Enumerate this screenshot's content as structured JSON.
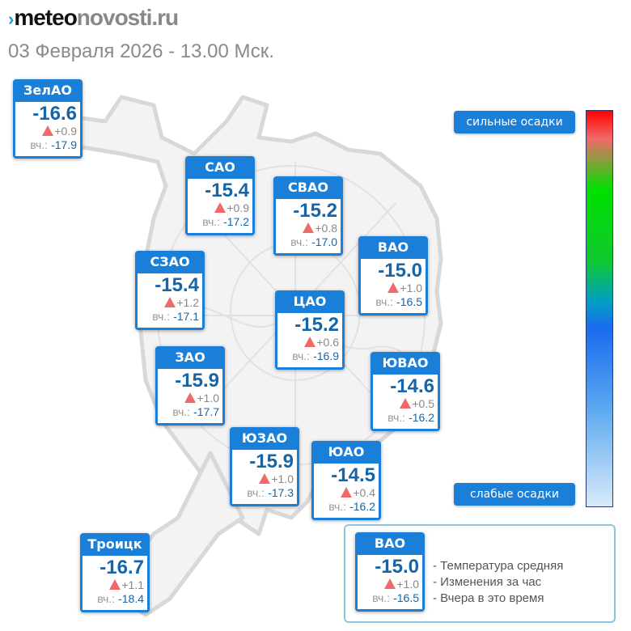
{
  "header": {
    "logo_part1": "meteo",
    "logo_part2": "novosti.ru",
    "date": "03 Февраля 2026 - 13.00 Мск."
  },
  "yesterday_label": "вч.:",
  "districts": [
    {
      "name": "ЗелАО",
      "temp": "-16.6",
      "change": "+0.9",
      "yesterday": "-17.9"
    },
    {
      "name": "САО",
      "temp": "-15.4",
      "change": "+0.9",
      "yesterday": "-17.2"
    },
    {
      "name": "СВАО",
      "temp": "-15.2",
      "change": "+0.8",
      "yesterday": "-17.0"
    },
    {
      "name": "ВАО",
      "temp": "-15.0",
      "change": "+1.0",
      "yesterday": "-16.5"
    },
    {
      "name": "СЗАО",
      "temp": "-15.4",
      "change": "+1.2",
      "yesterday": "-17.1"
    },
    {
      "name": "ЦАО",
      "temp": "-15.2",
      "change": "+0.6",
      "yesterday": "-16.9"
    },
    {
      "name": "ЗАО",
      "temp": "-15.9",
      "change": "+1.0",
      "yesterday": "-17.7"
    },
    {
      "name": "ЮВАО",
      "temp": "-14.6",
      "change": "+0.5",
      "yesterday": "-16.2"
    },
    {
      "name": "ЮЗАО",
      "temp": "-15.9",
      "change": "+1.0",
      "yesterday": "-17.3"
    },
    {
      "name": "ЮАО",
      "temp": "-14.5",
      "change": "+0.4",
      "yesterday": "-16.2"
    },
    {
      "name": "Троицк",
      "temp": "-16.7",
      "change": "+1.1",
      "yesterday": "-18.4"
    }
  ],
  "precip_scale": {
    "top_label": "сильные осадки",
    "bottom_label": "слабые осадки",
    "colors": [
      "#ff0000",
      "#00e000",
      "#1a6cf0",
      "#d8eafa"
    ]
  },
  "legend": {
    "sample": {
      "name": "ВАО",
      "temp": "-15.0",
      "change": "+1.0",
      "yesterday": "-16.5"
    },
    "lines": [
      "- Температура средняя",
      "- Изменения за час",
      "- Вчера в это время"
    ]
  },
  "colors": {
    "card": "#1a7fd8",
    "temp": "#1565a8",
    "increase": "#f06a6a"
  }
}
